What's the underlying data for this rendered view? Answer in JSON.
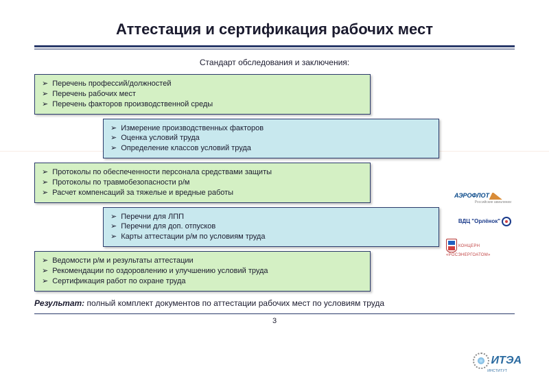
{
  "title": "Аттестация и сертификация рабочих мест",
  "subtitle": "Стандарт обследования и заключения:",
  "colors": {
    "green_bg": "#d4f0c4",
    "blue_bg": "#c8e8ee",
    "border": "#2a3a6a",
    "text": "#1a1a2e"
  },
  "boxes": [
    {
      "type": "green",
      "items": [
        "Перечень профессий/должностей",
        "Перечень рабочих мест",
        "Перечень факторов производственной среды"
      ]
    },
    {
      "type": "blue",
      "items": [
        "Измерение производственных факторов",
        "Оценка условий труда",
        "Определение классов условий труда"
      ]
    },
    {
      "type": "green",
      "items": [
        "Протоколы по обеспеченности персонала средствами защиты",
        "Протоколы по травмобезопасности р/м",
        "Расчет компенсаций за тяжелые и вредные работы"
      ]
    },
    {
      "type": "blue",
      "items": [
        "Перечни для ЛПП",
        "Перечни для доп. отпусков",
        "Карты аттестации р/м по условиям труда"
      ]
    },
    {
      "type": "green",
      "items": [
        "Ведомости р/м и результаты аттестации",
        "Рекомендации по оздоровлению и улучшению условий труда",
        "Сертификация работ по охране труда"
      ]
    }
  ],
  "result": {
    "label": "Результат:",
    "text": " полный комплект документов по аттестации рабочих мест по условиям труда"
  },
  "page_number": "3",
  "logos": {
    "aeroflot": "АЭРОФЛОТ",
    "aeroflot_sub": "Российские авиалинии",
    "vdc": "ВДЦ \"Орлёнок\"",
    "rosatom_left": "РОС АТОМ",
    "rosenergo": "КОНЦЕРН «РОСЭНЕРГОАТОМ»",
    "itea": "ИТЭА",
    "itea_sub": "ИНСТИТУТ"
  }
}
